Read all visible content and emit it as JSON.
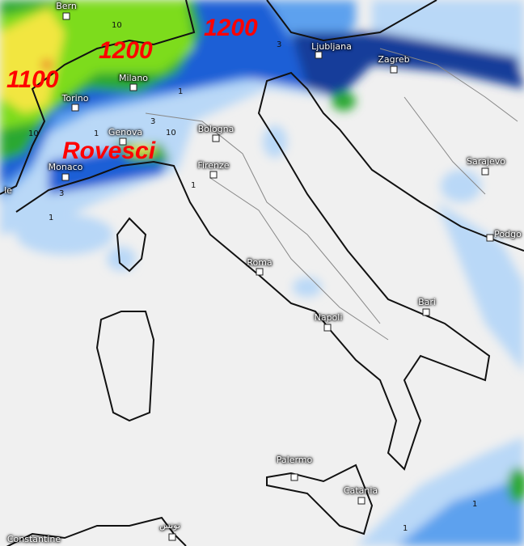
{
  "map": {
    "overlay_labels": [
      "1100",
      "1200",
      "1200",
      "Rovesci"
    ],
    "overlay_color": "#ff0000",
    "cities": [
      "Bern",
      "Milano",
      "Torino",
      "Genova",
      "Monaco",
      "Bologna",
      "Firenze",
      "Ljubljana",
      "Zagreb",
      "Sarajevo",
      "Podgo",
      "Roma",
      "Bari",
      "Napoli",
      "Palermo",
      "Catania",
      "تونس",
      "Constantine",
      "le"
    ],
    "contour_labels": [
      "10",
      "10",
      "1",
      "3",
      "3",
      "1",
      "10",
      "1",
      "3",
      "1",
      "1",
      "1"
    ],
    "precip_colors": {
      "light": "#b9d8f7",
      "mid": "#5da1ee",
      "strong": "#1f5fd6",
      "dark": "#143c9a",
      "green": "#2aa830",
      "lime": "#7ddc1f",
      "yellow": "#f2e640",
      "red": "#e53c1e"
    }
  }
}
